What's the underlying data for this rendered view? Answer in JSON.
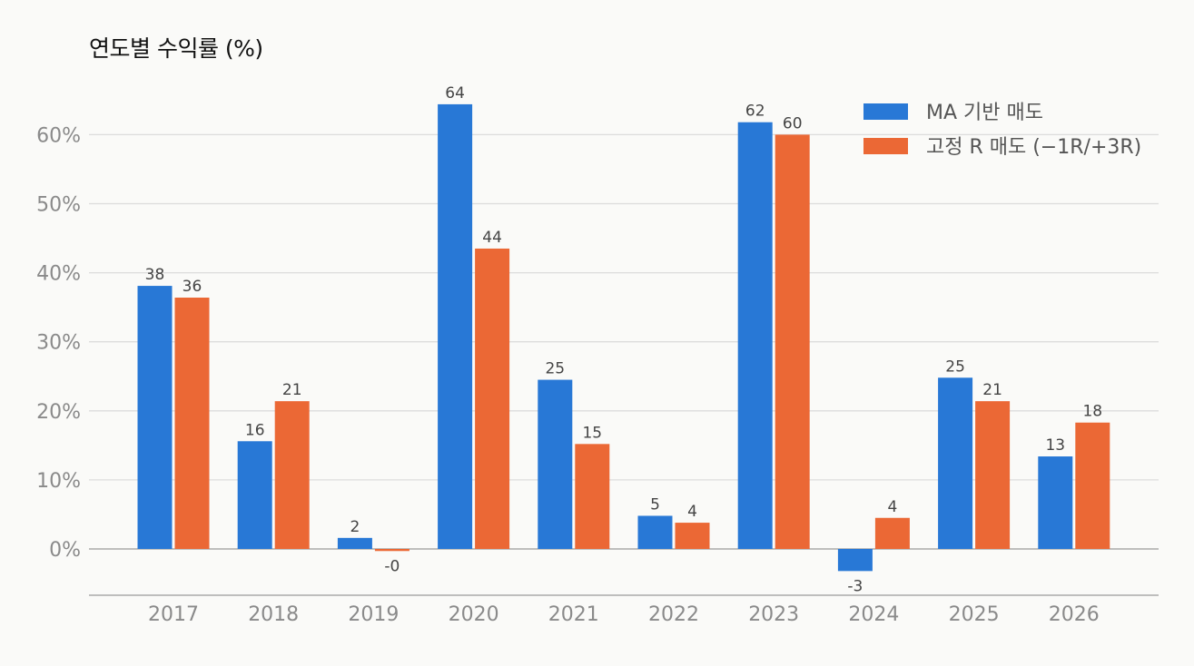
{
  "chart_data": {
    "type": "bar",
    "title": "연도별 수익률 (%)",
    "xlabel": "",
    "ylabel": "",
    "categories": [
      "2017",
      "2018",
      "2019",
      "2020",
      "2021",
      "2022",
      "2023",
      "2024",
      "2025",
      "2026"
    ],
    "series": [
      {
        "name": "MA 기반 매도",
        "color": "#2878d6",
        "values": [
          38.1,
          15.6,
          1.6,
          64.4,
          24.5,
          4.8,
          61.8,
          -3.2,
          24.8,
          13.4
        ],
        "labels": [
          "38",
          "16",
          "2",
          "64",
          "25",
          "5",
          "62",
          "-3",
          "25",
          "13"
        ]
      },
      {
        "name": "고정 R 매도 (−1R/+3R)",
        "color": "#eb6835",
        "values": [
          36.4,
          21.4,
          -0.3,
          43.5,
          15.2,
          3.8,
          60.0,
          4.5,
          21.4,
          18.3
        ],
        "labels": [
          "36",
          "21",
          "-0",
          "44",
          "15",
          "4",
          "60",
          "4",
          "21",
          "18"
        ]
      }
    ],
    "ylim": [
      -6.5,
      72
    ],
    "yticks": [
      0,
      10,
      20,
      30,
      40,
      50,
      60
    ],
    "ytick_labels": [
      "0%",
      "10%",
      "20%",
      "30%",
      "40%",
      "50%",
      "60%"
    ],
    "grid": true,
    "legend_position": "top-right"
  }
}
